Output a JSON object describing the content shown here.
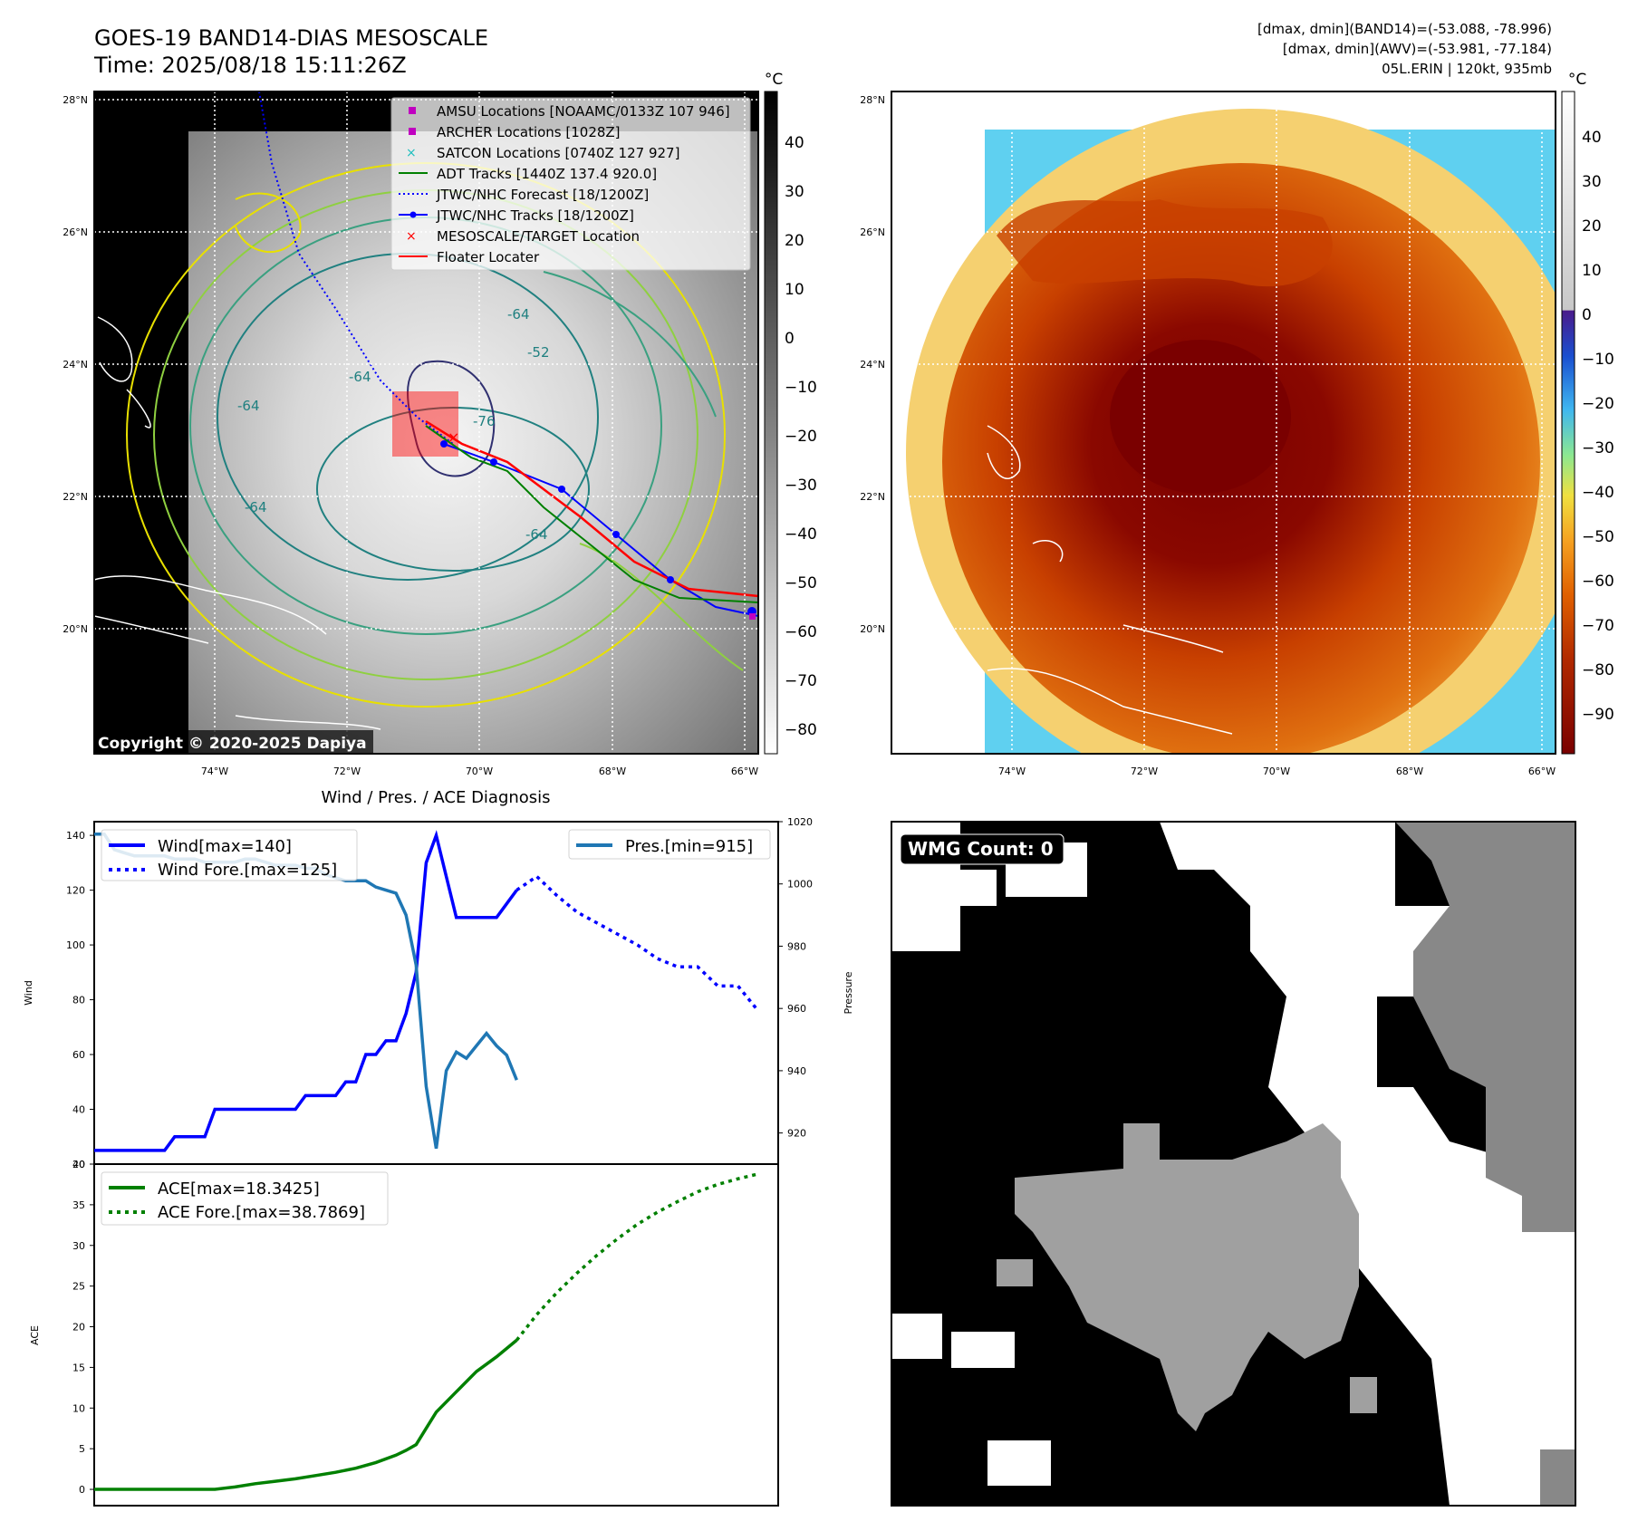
{
  "header": {
    "title_line1": "GOES-19 BAND14-DIAS MESOSCALE",
    "title_line2": "Time: 2025/08/18 15:11:26Z",
    "info_line1": "[dmax, dmin](BAND14)=(-53.088, -78.996)",
    "info_line2": "[dmax, dmin](AWV)=(-53.981, -77.184)",
    "info_line3": "05L.ERIN | 120kt, 935mb"
  },
  "map": {
    "lat_labels": [
      "28°N",
      "26°N",
      "24°N",
      "22°N",
      "20°N"
    ],
    "lon_labels": [
      "74°W",
      "72°W",
      "70°W",
      "68°W",
      "66°W"
    ],
    "copyright": "Copyright © 2020-2025 Dapiya",
    "contour_labels": [
      "-64",
      "-52",
      "-64",
      "-64",
      "-76",
      "-64",
      "-64"
    ],
    "legend": [
      {
        "label": "AMSU Locations [NOAAMC/0133Z 107 946]",
        "marker": "square",
        "color": "#c000c0"
      },
      {
        "label": "ARCHER Locations [1028Z]",
        "marker": "square",
        "color": "#c000c0"
      },
      {
        "label": "SATCON Locations [0740Z 127 927]",
        "marker": "x",
        "color": "#1fbfbf"
      },
      {
        "label": "ADT Tracks [1440Z 137.4 920.0]",
        "marker": "line",
        "color": "#008000"
      },
      {
        "label": "JTWC/NHC Forecast [18/1200Z]",
        "marker": "dotted",
        "color": "#0000ff"
      },
      {
        "label": "JTWC/NHC Tracks [18/1200Z]",
        "marker": "dotline",
        "color": "#0000ff"
      },
      {
        "label": "MESOSCALE/TARGET Location",
        "marker": "x",
        "color": "#ff0000"
      },
      {
        "label": "Floater Locater",
        "marker": "line",
        "color": "#ff0000"
      }
    ],
    "cb1_unit": "°C",
    "cb1_ticks": [
      "40",
      "30",
      "20",
      "10",
      "0",
      "−10",
      "−20",
      "−30",
      "−40",
      "−50",
      "−60",
      "−70",
      "−80"
    ],
    "cb2_unit": "°C",
    "cb2_ticks": [
      "40",
      "30",
      "20",
      "10",
      "0",
      "−10",
      "−20",
      "−30",
      "−40",
      "−50",
      "−60",
      "−70",
      "−80",
      "−90"
    ]
  },
  "wmg": {
    "label": "WMG Count: 0"
  },
  "chart_data": [
    {
      "type": "line",
      "title": "Wind / Pres. / ACE Diagnosis",
      "ylabel": "Wind",
      "ylim": [
        20,
        145
      ],
      "yticks": [
        "140",
        "120",
        "100",
        "80",
        "60",
        "40",
        "20"
      ],
      "series": [
        {
          "name": "Wind[max=140]",
          "color": "#0000ff",
          "style": "solid",
          "x": [
            0,
            1,
            2,
            3,
            4,
            5,
            6,
            7,
            8,
            9,
            10,
            11,
            12,
            13,
            14,
            15,
            16,
            17,
            18,
            19,
            20,
            21,
            22,
            23,
            24,
            25,
            26,
            27,
            28,
            29,
            30,
            31,
            32,
            33,
            34,
            35,
            36,
            37,
            38,
            39,
            40,
            41,
            42
          ],
          "values": [
            25,
            25,
            25,
            25,
            25,
            25,
            25,
            25,
            30,
            30,
            30,
            30,
            40,
            40,
            40,
            40,
            40,
            40,
            40,
            40,
            40,
            45,
            45,
            45,
            45,
            50,
            50,
            60,
            60,
            65,
            65,
            75,
            90,
            130,
            140,
            125,
            110,
            110,
            110,
            110,
            110,
            115,
            120
          ]
        },
        {
          "name": "Wind Fore.[max=125]",
          "color": "#0000ff",
          "style": "dotted",
          "x": [
            42,
            44,
            46,
            48,
            50,
            52,
            54,
            56,
            58,
            60,
            62,
            64,
            66
          ],
          "values": [
            120,
            125,
            118,
            112,
            108,
            104,
            100,
            95,
            92,
            92,
            85,
            85,
            76
          ]
        }
      ]
    },
    {
      "type": "line",
      "ylabel": "Pressure",
      "ylim": [
        910,
        1020
      ],
      "yticks": [
        "1020",
        "1000",
        "980",
        "960",
        "940",
        "920"
      ],
      "series": [
        {
          "name": "Pres.[min=915]",
          "color": "#1f77b4",
          "style": "solid",
          "x": [
            0,
            1,
            2,
            3,
            4,
            5,
            6,
            7,
            8,
            9,
            10,
            11,
            12,
            13,
            14,
            15,
            16,
            17,
            18,
            19,
            20,
            21,
            22,
            23,
            24,
            25,
            26,
            27,
            28,
            29,
            30,
            31,
            32,
            33,
            34,
            35,
            36,
            37,
            38,
            39,
            40,
            41,
            42
          ],
          "values": [
            1016,
            1016,
            1011,
            1010,
            1009,
            1009,
            1009,
            1009,
            1008,
            1008,
            1008,
            1007,
            1007,
            1007,
            1007,
            1008,
            1008,
            1007,
            1006,
            1006,
            1006,
            1005,
            1005,
            1003,
            1002,
            1001,
            1001,
            1001,
            999,
            998,
            997,
            990,
            974,
            935,
            915,
            940,
            946,
            944,
            948,
            952,
            948,
            945,
            937
          ]
        }
      ]
    },
    {
      "type": "line",
      "ylabel": "ACE",
      "ylim": [
        -2,
        40
      ],
      "yticks": [
        "40",
        "35",
        "30",
        "25",
        "20",
        "15",
        "10",
        "5",
        "0"
      ],
      "series": [
        {
          "name": "ACE[max=18.3425]",
          "color": "#008000",
          "style": "solid",
          "x": [
            0,
            2,
            4,
            6,
            8,
            10,
            12,
            14,
            16,
            18,
            20,
            22,
            24,
            26,
            28,
            30,
            31,
            32,
            33,
            34,
            36,
            38,
            40,
            42
          ],
          "values": [
            0,
            0,
            0,
            0,
            0,
            0,
            0,
            0.3,
            0.7,
            1.0,
            1.3,
            1.7,
            2.1,
            2.6,
            3.3,
            4.2,
            4.8,
            5.5,
            7.5,
            9.5,
            12,
            14.5,
            16.3,
            18.34
          ]
        },
        {
          "name": "ACE Fore.[max=38.7869]",
          "color": "#008000",
          "style": "dotted",
          "x": [
            42,
            44,
            46,
            48,
            50,
            52,
            54,
            56,
            58,
            60,
            62,
            64,
            66
          ],
          "values": [
            18.34,
            21.5,
            24.2,
            26.6,
            28.8,
            30.8,
            32.6,
            34.1,
            35.4,
            36.6,
            37.5,
            38.2,
            38.79
          ]
        }
      ]
    }
  ]
}
